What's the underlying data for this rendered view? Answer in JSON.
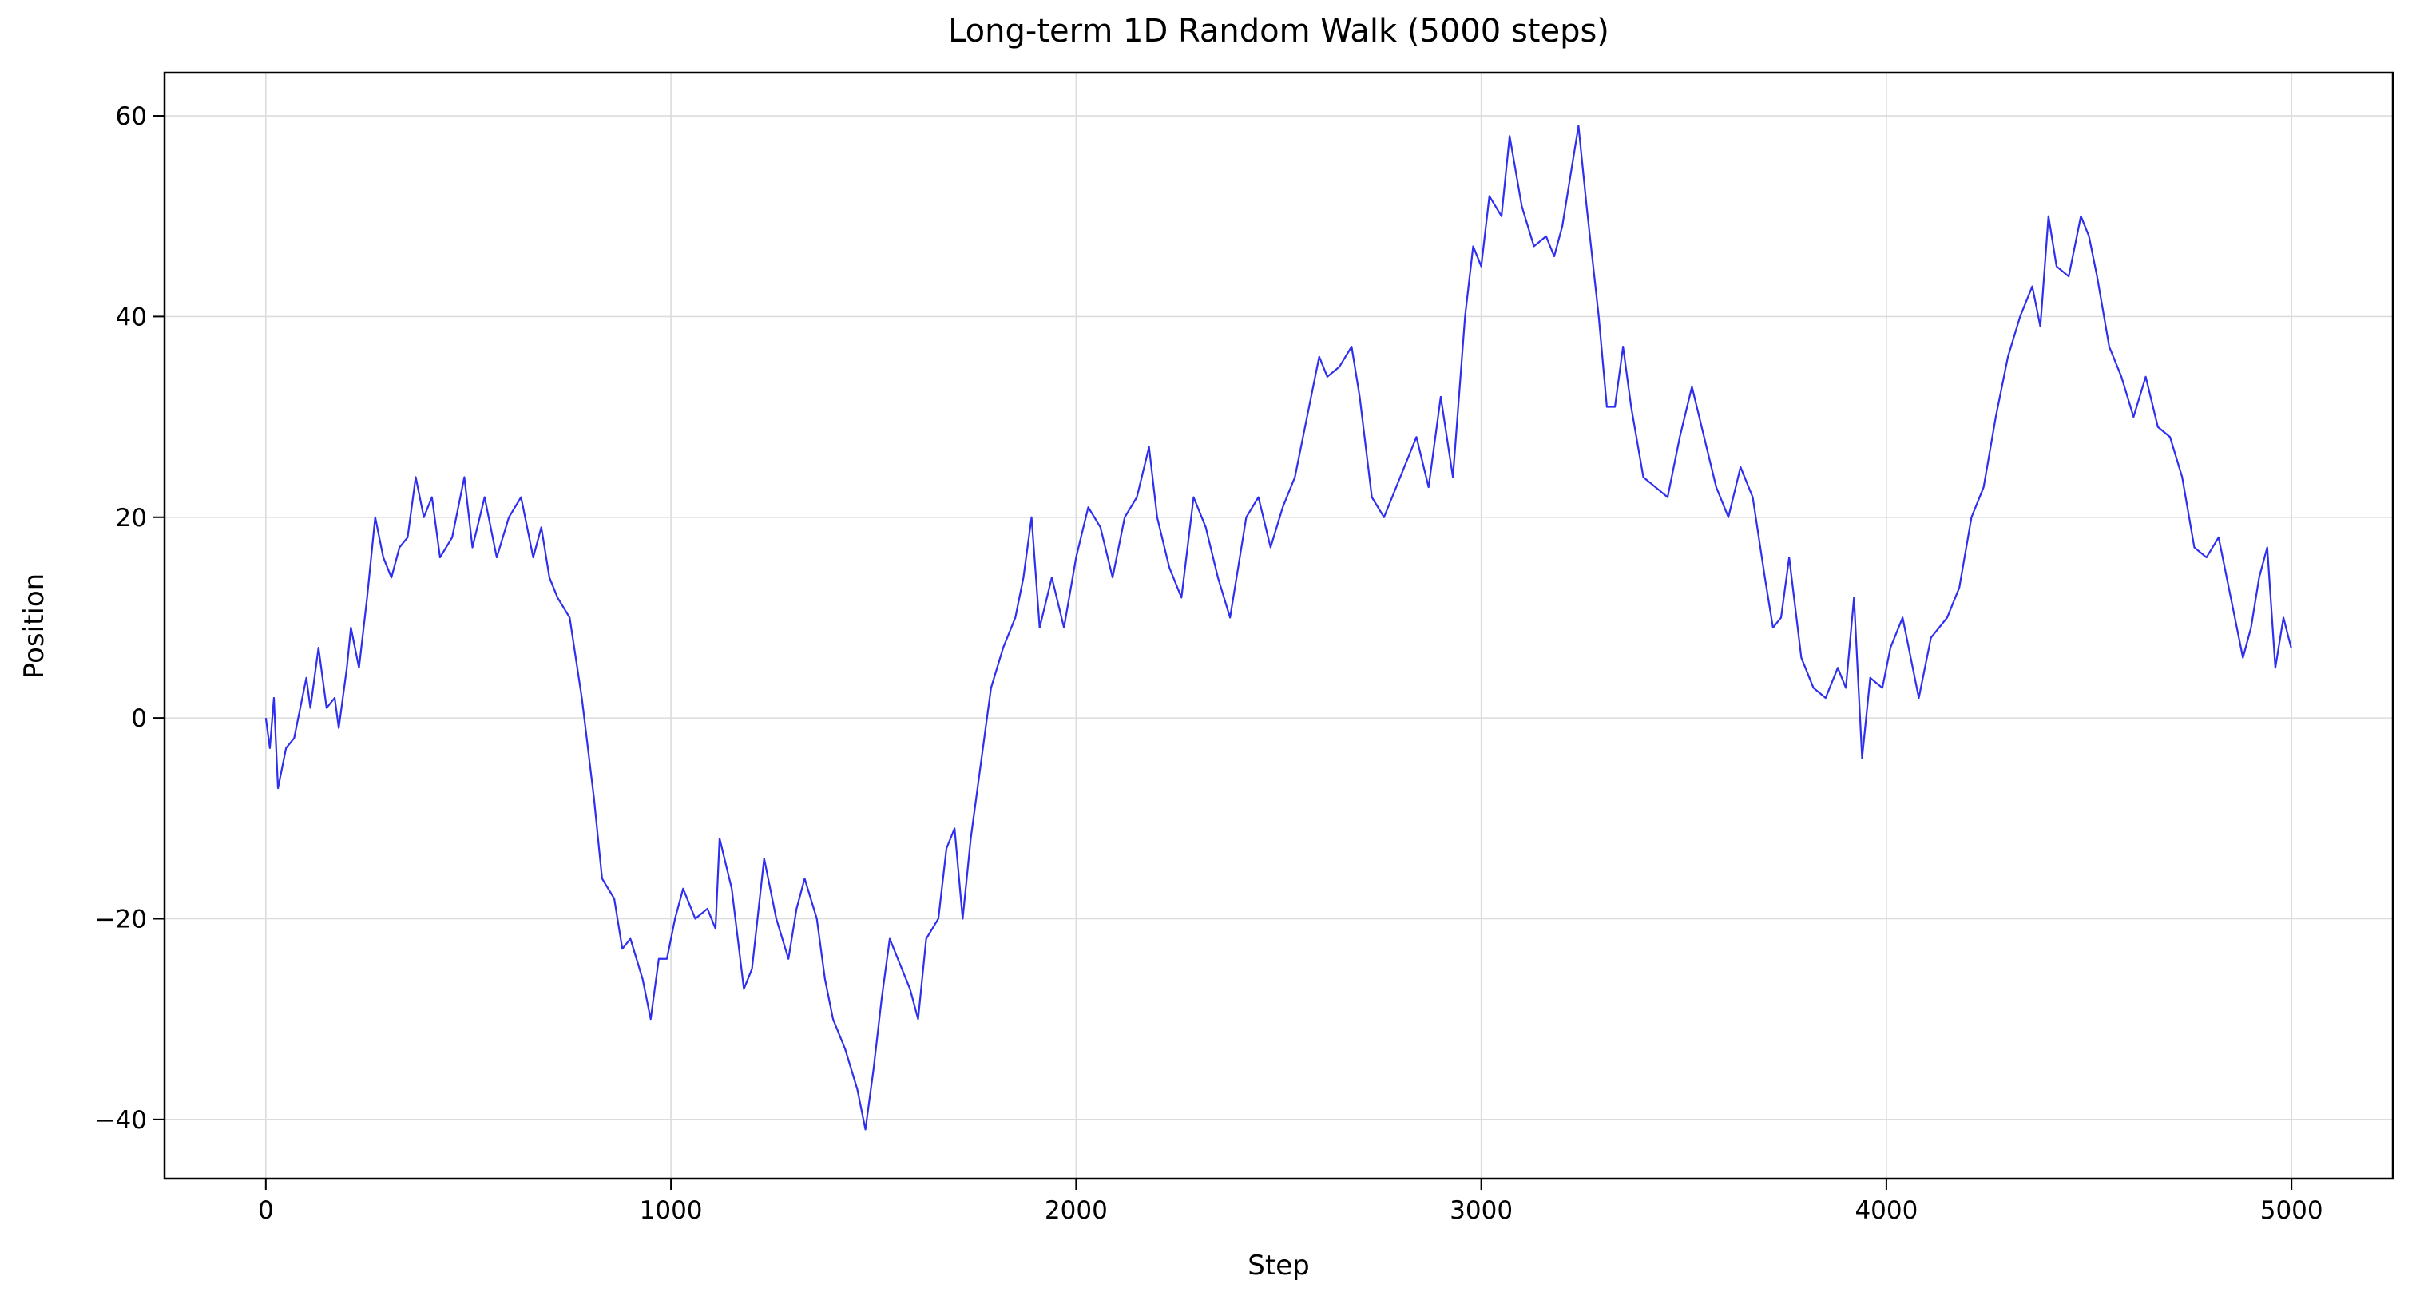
{
  "chart_data": {
    "type": "line",
    "title": "Long-term 1D Random Walk (5000 steps)",
    "xlabel": "Step",
    "ylabel": "Position",
    "color": "#2f2ff0",
    "grid": true,
    "xlim": [
      -250,
      5250
    ],
    "ylim": [
      -45.9,
      64.3
    ],
    "xticks": [
      0,
      1000,
      2000,
      3000,
      4000,
      5000
    ],
    "yticks": [
      {
        "value": -40,
        "label": "−40"
      },
      {
        "value": -20,
        "label": "−20"
      },
      0,
      20,
      40,
      60
    ],
    "x": [
      0,
      10,
      20,
      30,
      50,
      70,
      90,
      100,
      110,
      130,
      150,
      170,
      180,
      200,
      210,
      230,
      250,
      270,
      290,
      310,
      330,
      350,
      370,
      390,
      410,
      430,
      460,
      490,
      510,
      540,
      570,
      600,
      630,
      660,
      680,
      700,
      720,
      750,
      780,
      810,
      830,
      860,
      880,
      900,
      930,
      950,
      970,
      990,
      1010,
      1030,
      1060,
      1090,
      1110,
      1120,
      1150,
      1180,
      1200,
      1230,
      1260,
      1290,
      1310,
      1330,
      1360,
      1380,
      1400,
      1430,
      1460,
      1480,
      1500,
      1520,
      1540,
      1560,
      1590,
      1610,
      1630,
      1660,
      1680,
      1700,
      1720,
      1740,
      1760,
      1790,
      1820,
      1850,
      1870,
      1890,
      1910,
      1940,
      1970,
      2000,
      2030,
      2060,
      2090,
      2120,
      2150,
      2180,
      2200,
      2230,
      2260,
      2290,
      2320,
      2350,
      2380,
      2420,
      2450,
      2480,
      2510,
      2540,
      2570,
      2600,
      2620,
      2650,
      2680,
      2700,
      2730,
      2760,
      2800,
      2840,
      2870,
      2900,
      2930,
      2960,
      2980,
      3000,
      3020,
      3050,
      3070,
      3100,
      3130,
      3160,
      3180,
      3200,
      3240,
      3260,
      3290,
      3310,
      3330,
      3350,
      3370,
      3400,
      3430,
      3460,
      3490,
      3520,
      3550,
      3580,
      3610,
      3640,
      3670,
      3700,
      3720,
      3740,
      3760,
      3790,
      3820,
      3850,
      3880,
      3900,
      3920,
      3940,
      3960,
      3990,
      4010,
      4040,
      4080,
      4110,
      4150,
      4180,
      4210,
      4240,
      4270,
      4300,
      4330,
      4360,
      4380,
      4400,
      4420,
      4450,
      4480,
      4500,
      4520,
      4550,
      4580,
      4610,
      4640,
      4670,
      4700,
      4730,
      4760,
      4790,
      4820,
      4840,
      4860,
      4880,
      4900,
      4920,
      4940,
      4960,
      4980,
      4999
    ],
    "values": [
      0,
      -3,
      2,
      -7,
      -3,
      -2,
      2,
      4,
      1,
      7,
      1,
      2,
      -1,
      5,
      9,
      5,
      12,
      20,
      16,
      14,
      17,
      18,
      24,
      20,
      22,
      16,
      18,
      24,
      17,
      22,
      16,
      20,
      22,
      16,
      19,
      14,
      12,
      10,
      2,
      -8,
      -16,
      -18,
      -23,
      -22,
      -26,
      -30,
      -24,
      -24,
      -20,
      -17,
      -20,
      -19,
      -21,
      -12,
      -17,
      -27,
      -25,
      -14,
      -20,
      -24,
      -19,
      -16,
      -20,
      -26,
      -30,
      -33,
      -37,
      -41,
      -35,
      -28,
      -22,
      -24,
      -27,
      -30,
      -22,
      -20,
      -13,
      -11,
      -20,
      -12,
      -6,
      3,
      7,
      10,
      14,
      20,
      9,
      14,
      9,
      16,
      21,
      19,
      14,
      20,
      22,
      27,
      20,
      15,
      12,
      22,
      19,
      14,
      10,
      20,
      22,
      17,
      21,
      24,
      30,
      36,
      34,
      35,
      37,
      32,
      22,
      20,
      24,
      28,
      23,
      32,
      24,
      40,
      47,
      45,
      52,
      50,
      58,
      51,
      47,
      48,
      46,
      49,
      59,
      51,
      40,
      31,
      31,
      37,
      31,
      24,
      23,
      22,
      28,
      33,
      28,
      23,
      20,
      25,
      22,
      14,
      9,
      10,
      16,
      6,
      3,
      2,
      5,
      3,
      12,
      -4,
      4,
      3,
      7,
      10,
      2,
      8,
      10,
      13,
      20,
      23,
      30,
      36,
      40,
      43,
      39,
      50,
      45,
      44,
      50,
      48,
      44,
      37,
      34,
      30,
      34,
      29,
      28,
      24,
      17,
      16,
      18,
      14,
      10,
      6,
      9,
      14,
      17,
      5,
      10,
      7
    ]
  }
}
